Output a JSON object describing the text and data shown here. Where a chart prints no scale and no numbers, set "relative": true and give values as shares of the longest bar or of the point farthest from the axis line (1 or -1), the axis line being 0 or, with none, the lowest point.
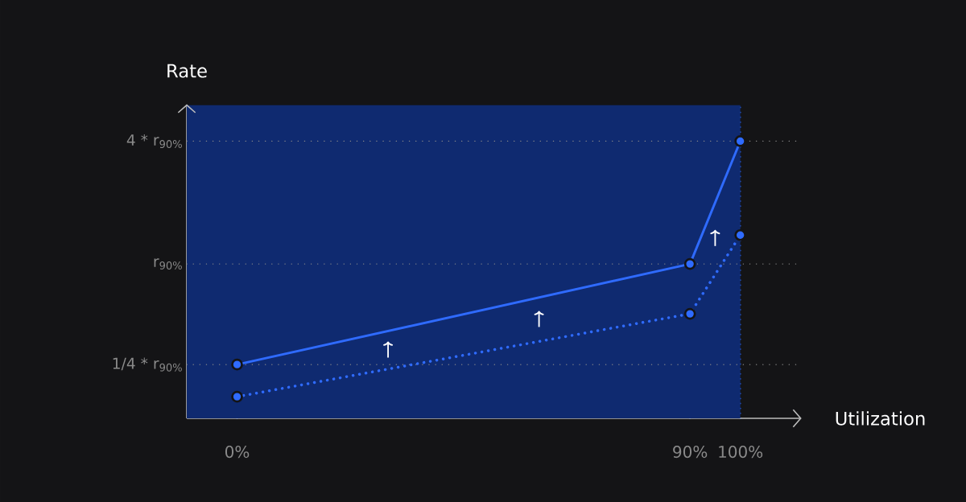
{
  "chart_data": {
    "type": "line",
    "xlabel": "Utilization",
    "ylabel": "Rate",
    "relative": true,
    "x": [
      0,
      90,
      100
    ],
    "xlim": [
      -10,
      112
    ],
    "xticks": [
      {
        "value": 0,
        "label": "0%"
      },
      {
        "value": 90,
        "label": "90%"
      },
      {
        "value": 100,
        "label": "100%"
      }
    ],
    "series": [
      {
        "color": "#2f6bff",
        "line_style": "solid",
        "values": [
          0.194,
          0.557,
          1
        ]
      },
      {
        "color": "#2f6bff",
        "line_style": "dotted",
        "values": [
          0.078,
          0.377,
          0.661
        ]
      }
    ],
    "marker": "circle",
    "grid": "x",
    "ref_lines": [
      {
        "axis": "y",
        "value": 1,
        "label": "4 * r$_{90%}$",
        "color": "#8a8a8a",
        "line_style": "dotted"
      },
      {
        "axis": "y",
        "value": 0.557,
        "label": "r$_{90%}$",
        "color": "#8a8a8a",
        "line_style": "dotted"
      },
      {
        "axis": "y",
        "value": 0.194,
        "label": "1/4 * r$_{90%}$",
        "color": "#8a8a8a",
        "line_style": "dotted"
      }
    ],
    "bands": [
      {
        "axis": "x",
        "from": -10,
        "to": 100,
        "color": "#0f2a70"
      }
    ]
  }
}
